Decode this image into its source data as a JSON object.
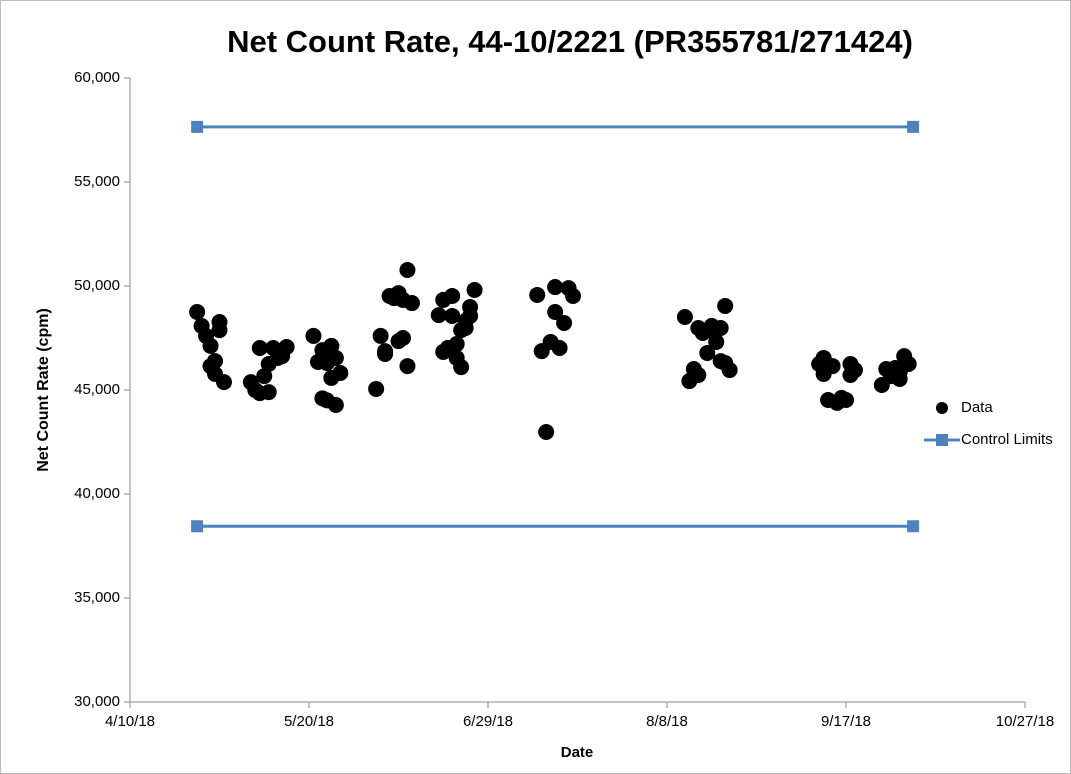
{
  "chart_data": {
    "type": "scatter",
    "title": "Net Count Rate, 44-10/2221 (PR355781/271424)",
    "x_label": "Date",
    "y_label": "Net Count Rate (cpm)",
    "xlim": [
      "4/10/18",
      "10/27/18"
    ],
    "xticks": [
      "4/10/18",
      "5/20/18",
      "6/29/18",
      "8/8/18",
      "9/17/18",
      "10/27/18"
    ],
    "ylim": [
      30000,
      60000
    ],
    "yticks": [
      {
        "value": 30000,
        "label": "30,000"
      },
      {
        "value": 35000,
        "label": "35,000"
      },
      {
        "value": 40000,
        "label": "40,000"
      },
      {
        "value": 45000,
        "label": "45,000"
      },
      {
        "value": 50000,
        "label": "50,000"
      },
      {
        "value": 55000,
        "label": "55,000"
      },
      {
        "value": 60000,
        "label": "60,000"
      }
    ],
    "grid": false,
    "legend": "right",
    "series": [
      {
        "name": "Data",
        "color": "#000000",
        "marker": "circle",
        "x": [
          "4/25/18",
          "4/26/18",
          "4/27/18",
          "4/28/18",
          "4/28/18",
          "4/29/18",
          "4/29/18",
          "4/30/18",
          "4/30/18",
          "5/1/18",
          "5/7/18",
          "5/8/18",
          "5/9/18",
          "5/9/18",
          "5/10/18",
          "5/11/18",
          "5/11/18",
          "5/12/18",
          "5/13/18",
          "5/14/18",
          "5/15/18",
          "5/21/18",
          "5/22/18",
          "5/23/18",
          "5/23/18",
          "5/24/18",
          "5/24/18",
          "5/25/18",
          "5/25/18",
          "5/26/18",
          "5/26/18",
          "5/27/18",
          "6/4/18",
          "6/5/18",
          "6/6/18",
          "6/6/18",
          "6/7/18",
          "6/8/18",
          "6/9/18",
          "6/9/18",
          "6/10/18",
          "6/10/18",
          "6/11/18",
          "6/11/18",
          "6/12/18",
          "6/18/18",
          "6/19/18",
          "6/19/18",
          "6/20/18",
          "6/21/18",
          "6/21/18",
          "6/22/18",
          "6/22/18",
          "6/23/18",
          "6/23/18",
          "6/24/18",
          "6/24/18",
          "6/25/18",
          "6/25/18",
          "6/26/18",
          "7/10/18",
          "7/11/18",
          "7/12/18",
          "7/13/18",
          "7/14/18",
          "7/14/18",
          "7/15/18",
          "7/16/18",
          "7/17/18",
          "7/18/18",
          "8/12/18",
          "8/13/18",
          "8/14/18",
          "8/15/18",
          "8/15/18",
          "8/16/18",
          "8/17/18",
          "8/18/18",
          "8/18/18",
          "8/19/18",
          "8/20/18",
          "8/20/18",
          "8/21/18",
          "8/21/18",
          "8/22/18",
          "9/11/18",
          "9/12/18",
          "9/12/18",
          "9/13/18",
          "9/14/18",
          "9/15/18",
          "9/16/18",
          "9/17/18",
          "9/18/18",
          "9/18/18",
          "9/19/18",
          "9/25/18",
          "9/26/18",
          "9/27/18",
          "9/28/18",
          "9/29/18",
          "9/29/18",
          "9/30/18",
          "10/1/18"
        ],
        "values": [
          48750,
          48080,
          47600,
          46150,
          47120,
          45770,
          46390,
          48270,
          47880,
          45380,
          45380,
          45000,
          44850,
          47020,
          45670,
          44900,
          46250,
          47020,
          46540,
          46630,
          47070,
          47600,
          46350,
          46920,
          44600,
          46300,
          44500,
          47120,
          45580,
          46540,
          44280,
          45820,
          45050,
          47600,
          46730,
          46870,
          49520,
          49420,
          49660,
          47350,
          49330,
          47500,
          50770,
          46150,
          49180,
          48600,
          49330,
          46830,
          47020,
          48560,
          49520,
          47210,
          46540,
          47880,
          46100,
          48320,
          47980,
          48990,
          48560,
          49810,
          49570,
          46870,
          42980,
          47310,
          48750,
          49950,
          47020,
          48220,
          49900,
          49520,
          48510,
          45430,
          46010,
          45720,
          47980,
          47740,
          46780,
          47880,
          48080,
          47310,
          46390,
          47980,
          49040,
          46300,
          45960,
          46250,
          46540,
          45770,
          44520,
          46150,
          44380,
          44620,
          44520,
          45720,
          46250,
          45960,
          45240,
          46010,
          45670,
          46060,
          45860,
          45530,
          46630,
          46250
        ]
      },
      {
        "name": "Control Limits",
        "color": "#4f81bd",
        "marker": "square",
        "x": [
          "4/25/18",
          "10/2/18",
          null,
          "4/25/18",
          "10/2/18"
        ],
        "values": [
          57650,
          57650,
          null,
          38450,
          38450
        ]
      }
    ]
  }
}
